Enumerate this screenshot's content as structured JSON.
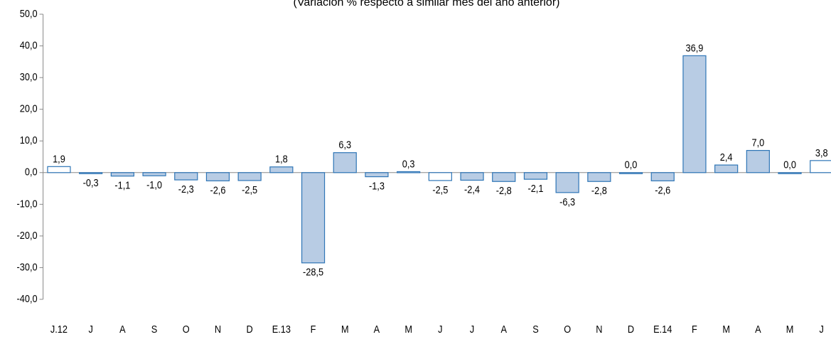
{
  "chart_data": {
    "type": "bar",
    "subtitle": "(Variación % respecto a similar mes del año anterior)",
    "categories": [
      "J.12",
      "J",
      "A",
      "S",
      "O",
      "N",
      "D",
      "E.13",
      "F",
      "M",
      "A",
      "M",
      "J",
      "J",
      "A",
      "S",
      "O",
      "N",
      "D",
      "E.14",
      "F",
      "M",
      "A",
      "M",
      "J"
    ],
    "values": [
      1.9,
      -0.3,
      -1.1,
      -1.0,
      -2.3,
      -2.6,
      -2.5,
      1.8,
      -28.5,
      6.3,
      -1.3,
      0.3,
      -2.5,
      -2.4,
      -2.8,
      -2.1,
      -6.3,
      -2.8,
      0.0,
      -2.6,
      36.9,
      2.4,
      7.0,
      0.0,
      3.8
    ],
    "value_labels": [
      "1,9",
      "-0,3",
      "-1,1",
      "-1,0",
      "-2,3",
      "-2,6",
      "-2,5",
      "1,8",
      "-28,5",
      "6,3",
      "-1,3",
      "0,3",
      "-2,5",
      "-2,4",
      "-2,8",
      "-2,1",
      "-6,3",
      "-2,8",
      "0,0",
      "-2,6",
      "36,9",
      "2,4",
      "7,0",
      "0,0",
      "3,8"
    ],
    "colors": [
      "#ffffff",
      "#b8cce4",
      "#b8cce4",
      "#b8cce4",
      "#b8cce4",
      "#b8cce4",
      "#b8cce4",
      "#b8cce4",
      "#b8cce4",
      "#b8cce4",
      "#b8cce4",
      "#b8cce4",
      "#ffffff",
      "#b8cce4",
      "#b8cce4",
      "#b8cce4",
      "#b8cce4",
      "#b8cce4",
      "#b8cce4",
      "#b8cce4",
      "#b8cce4",
      "#b8cce4",
      "#b8cce4",
      "#b8cce4",
      "#ffffff"
    ],
    "edge_color": "#2e75b6",
    "ylim": [
      -40,
      50
    ],
    "yticks": [
      {
        "value": -40,
        "label": "-40,0"
      },
      {
        "value": -30,
        "label": "-30,0"
      },
      {
        "value": -20,
        "label": "-20,0"
      },
      {
        "value": -10,
        "label": "-10,0"
      },
      {
        "value": 0,
        "label": "0,0"
      },
      {
        "value": 10,
        "label": "10,0"
      },
      {
        "value": 20,
        "label": "20,0"
      },
      {
        "value": 30,
        "label": "30,0"
      },
      {
        "value": 40,
        "label": "40,0"
      },
      {
        "value": 50,
        "label": "50,0"
      }
    ]
  }
}
